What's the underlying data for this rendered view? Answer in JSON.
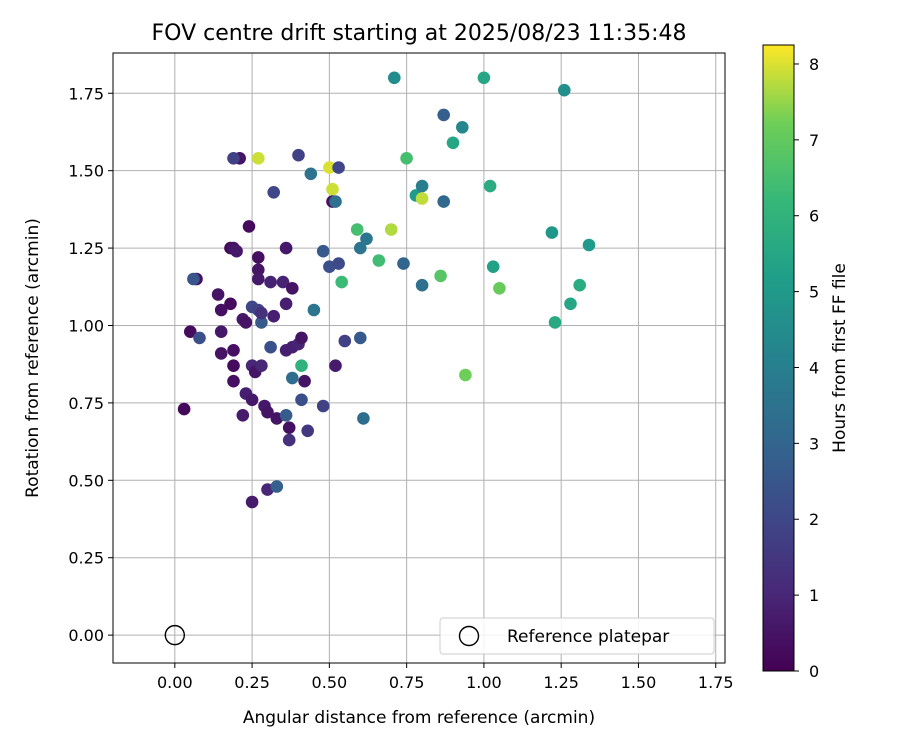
{
  "chart_data": {
    "type": "scatter",
    "title": "FOV centre drift starting at 2025/08/23 11:35:48",
    "xlabel": "Angular distance from reference (arcmin)",
    "ylabel": "Rotation from reference (arcmin)",
    "xlim": [
      -0.2,
      1.78
    ],
    "ylim": [
      -0.09,
      1.88
    ],
    "xticks": [
      0.0,
      0.25,
      0.5,
      0.75,
      1.0,
      1.25,
      1.5,
      1.75
    ],
    "xtick_labels": [
      "0.00",
      "0.25",
      "0.50",
      "0.75",
      "1.00",
      "1.25",
      "1.50",
      "1.75"
    ],
    "yticks": [
      0.0,
      0.25,
      0.5,
      0.75,
      1.0,
      1.25,
      1.5,
      1.75
    ],
    "ytick_labels": [
      "0.00",
      "0.25",
      "0.50",
      "0.75",
      "1.00",
      "1.25",
      "1.50",
      "1.75"
    ],
    "grid": true,
    "colormap": "viridis",
    "colorbar": {
      "label": "Hours from first FF file",
      "range": [
        0,
        8.25
      ],
      "ticks": [
        0,
        1,
        2,
        3,
        4,
        5,
        6,
        7,
        8
      ],
      "tick_labels": [
        "0",
        "1",
        "2",
        "3",
        "4",
        "5",
        "6",
        "7",
        "8"
      ]
    },
    "legend": {
      "position": "lower-right",
      "entries": [
        {
          "label": "Reference platepar",
          "marker": "hollow-circle"
        }
      ]
    },
    "reference_point": {
      "x": 0.0,
      "y": 0.0
    },
    "points": [
      {
        "x": 0.03,
        "y": 0.73,
        "c": 0.2
      },
      {
        "x": 0.05,
        "y": 0.98,
        "c": 0.3
      },
      {
        "x": 0.07,
        "y": 1.15,
        "c": 0.4
      },
      {
        "x": 0.06,
        "y": 1.15,
        "c": 2.5
      },
      {
        "x": 0.08,
        "y": 0.96,
        "c": 2.3
      },
      {
        "x": 0.14,
        "y": 1.1,
        "c": 0.5
      },
      {
        "x": 0.15,
        "y": 1.05,
        "c": 0.4
      },
      {
        "x": 0.15,
        "y": 0.98,
        "c": 0.6
      },
      {
        "x": 0.15,
        "y": 0.91,
        "c": 0.5
      },
      {
        "x": 0.18,
        "y": 1.25,
        "c": 0.2
      },
      {
        "x": 0.18,
        "y": 1.07,
        "c": 0.3
      },
      {
        "x": 0.19,
        "y": 0.92,
        "c": 0.4
      },
      {
        "x": 0.19,
        "y": 0.87,
        "c": 0.3
      },
      {
        "x": 0.19,
        "y": 0.82,
        "c": 0.4
      },
      {
        "x": 0.19,
        "y": 1.25,
        "c": 0.5
      },
      {
        "x": 0.21,
        "y": 1.54,
        "c": 0.5
      },
      {
        "x": 0.19,
        "y": 1.54,
        "c": 1.8
      },
      {
        "x": 0.2,
        "y": 1.24,
        "c": 0.6
      },
      {
        "x": 0.22,
        "y": 1.02,
        "c": 0.6
      },
      {
        "x": 0.23,
        "y": 1.01,
        "c": 0.5
      },
      {
        "x": 0.22,
        "y": 0.71,
        "c": 0.7
      },
      {
        "x": 0.23,
        "y": 0.78,
        "c": 0.8
      },
      {
        "x": 0.24,
        "y": 1.32,
        "c": 0.3
      },
      {
        "x": 0.25,
        "y": 0.76,
        "c": 0.6
      },
      {
        "x": 0.25,
        "y": 0.43,
        "c": 0.7
      },
      {
        "x": 0.25,
        "y": 1.06,
        "c": 2.0
      },
      {
        "x": 0.25,
        "y": 0.87,
        "c": 1.0
      },
      {
        "x": 0.26,
        "y": 0.85,
        "c": 0.5
      },
      {
        "x": 0.27,
        "y": 1.22,
        "c": 0.4
      },
      {
        "x": 0.27,
        "y": 1.18,
        "c": 0.5
      },
      {
        "x": 0.27,
        "y": 1.15,
        "c": 0.6
      },
      {
        "x": 0.27,
        "y": 1.05,
        "c": 1.9
      },
      {
        "x": 0.28,
        "y": 1.01,
        "c": 2.6
      },
      {
        "x": 0.28,
        "y": 1.04,
        "c": 1.3
      },
      {
        "x": 0.28,
        "y": 0.87,
        "c": 1.0
      },
      {
        "x": 0.27,
        "y": 1.54,
        "c": 7.9
      },
      {
        "x": 0.29,
        "y": 0.74,
        "c": 0.6
      },
      {
        "x": 0.3,
        "y": 0.72,
        "c": 0.5
      },
      {
        "x": 0.3,
        "y": 0.47,
        "c": 1.0
      },
      {
        "x": 0.31,
        "y": 0.93,
        "c": 2.3
      },
      {
        "x": 0.31,
        "y": 1.14,
        "c": 0.9
      },
      {
        "x": 0.32,
        "y": 1.03,
        "c": 0.8
      },
      {
        "x": 0.32,
        "y": 1.43,
        "c": 2.0
      },
      {
        "x": 0.33,
        "y": 0.7,
        "c": 0.5
      },
      {
        "x": 0.33,
        "y": 0.48,
        "c": 2.8
      },
      {
        "x": 0.35,
        "y": 1.14,
        "c": 0.9
      },
      {
        "x": 0.36,
        "y": 0.92,
        "c": 0.8
      },
      {
        "x": 0.36,
        "y": 1.07,
        "c": 0.8
      },
      {
        "x": 0.36,
        "y": 1.25,
        "c": 0.6
      },
      {
        "x": 0.36,
        "y": 0.71,
        "c": 2.7
      },
      {
        "x": 0.37,
        "y": 0.67,
        "c": 0.4
      },
      {
        "x": 0.37,
        "y": 0.63,
        "c": 1.3
      },
      {
        "x": 0.38,
        "y": 0.93,
        "c": 0.8
      },
      {
        "x": 0.38,
        "y": 0.83,
        "c": 3.3
      },
      {
        "x": 0.38,
        "y": 1.12,
        "c": 0.5
      },
      {
        "x": 0.4,
        "y": 1.55,
        "c": 1.8
      },
      {
        "x": 0.4,
        "y": 0.94,
        "c": 0.9
      },
      {
        "x": 0.41,
        "y": 0.87,
        "c": 6.0
      },
      {
        "x": 0.41,
        "y": 0.76,
        "c": 2.3
      },
      {
        "x": 0.41,
        "y": 0.96,
        "c": 0.5
      },
      {
        "x": 0.42,
        "y": 0.82,
        "c": 0.5
      },
      {
        "x": 0.43,
        "y": 0.66,
        "c": 1.5
      },
      {
        "x": 0.44,
        "y": 1.49,
        "c": 3.5
      },
      {
        "x": 0.45,
        "y": 1.05,
        "c": 3.6
      },
      {
        "x": 0.48,
        "y": 1.24,
        "c": 2.6
      },
      {
        "x": 0.48,
        "y": 0.74,
        "c": 1.8
      },
      {
        "x": 0.5,
        "y": 1.19,
        "c": 2.3
      },
      {
        "x": 0.5,
        "y": 1.51,
        "c": 8.0
      },
      {
        "x": 0.51,
        "y": 1.44,
        "c": 7.9
      },
      {
        "x": 0.51,
        "y": 1.4,
        "c": 0.4
      },
      {
        "x": 0.52,
        "y": 1.4,
        "c": 3.4
      },
      {
        "x": 0.52,
        "y": 0.87,
        "c": 0.7
      },
      {
        "x": 0.53,
        "y": 1.51,
        "c": 2.0
      },
      {
        "x": 0.53,
        "y": 1.2,
        "c": 2.1
      },
      {
        "x": 0.54,
        "y": 1.14,
        "c": 6.3
      },
      {
        "x": 0.55,
        "y": 0.95,
        "c": 1.8
      },
      {
        "x": 0.59,
        "y": 1.31,
        "c": 6.5
      },
      {
        "x": 0.6,
        "y": 0.96,
        "c": 2.6
      },
      {
        "x": 0.6,
        "y": 1.25,
        "c": 3.6
      },
      {
        "x": 0.61,
        "y": 0.7,
        "c": 3.3
      },
      {
        "x": 0.62,
        "y": 1.28,
        "c": 3.6
      },
      {
        "x": 0.66,
        "y": 1.21,
        "c": 6.4
      },
      {
        "x": 0.7,
        "y": 1.31,
        "c": 7.7
      },
      {
        "x": 0.71,
        "y": 1.8,
        "c": 4.5
      },
      {
        "x": 0.74,
        "y": 1.2,
        "c": 3.0
      },
      {
        "x": 0.75,
        "y": 1.54,
        "c": 6.5
      },
      {
        "x": 0.78,
        "y": 1.42,
        "c": 5.0
      },
      {
        "x": 0.8,
        "y": 1.13,
        "c": 3.4
      },
      {
        "x": 0.8,
        "y": 1.45,
        "c": 4.0
      },
      {
        "x": 0.8,
        "y": 1.41,
        "c": 7.8
      },
      {
        "x": 0.86,
        "y": 1.16,
        "c": 6.8
      },
      {
        "x": 0.87,
        "y": 1.68,
        "c": 2.8
      },
      {
        "x": 0.87,
        "y": 1.4,
        "c": 3.1
      },
      {
        "x": 0.9,
        "y": 1.59,
        "c": 5.5
      },
      {
        "x": 0.93,
        "y": 1.64,
        "c": 4.3
      },
      {
        "x": 0.94,
        "y": 0.84,
        "c": 7.2
      },
      {
        "x": 1.0,
        "y": 1.8,
        "c": 5.5
      },
      {
        "x": 1.02,
        "y": 1.45,
        "c": 5.7
      },
      {
        "x": 1.03,
        "y": 1.19,
        "c": 5.3
      },
      {
        "x": 1.05,
        "y": 1.12,
        "c": 7.1
      },
      {
        "x": 1.22,
        "y": 1.3,
        "c": 4.9
      },
      {
        "x": 1.23,
        "y": 1.01,
        "c": 5.6
      },
      {
        "x": 1.26,
        "y": 1.76,
        "c": 4.6
      },
      {
        "x": 1.28,
        "y": 1.07,
        "c": 5.5
      },
      {
        "x": 1.31,
        "y": 1.13,
        "c": 5.7
      },
      {
        "x": 1.34,
        "y": 1.26,
        "c": 5.0
      }
    ]
  }
}
